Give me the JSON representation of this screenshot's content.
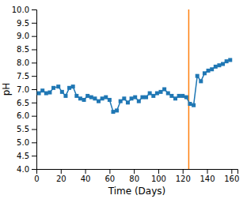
{
  "chart_data": {
    "type": "line",
    "xlabel": "Time (Days)",
    "ylabel": "pH",
    "x": [
      2,
      5,
      8,
      11,
      14,
      18,
      21,
      24,
      27,
      30,
      33,
      36,
      39,
      42,
      45,
      48,
      51,
      54,
      57,
      60,
      63,
      66,
      69,
      72,
      75,
      78,
      81,
      84,
      87,
      90,
      93,
      96,
      99,
      102,
      105,
      108,
      111,
      114,
      117,
      120,
      123,
      126,
      129,
      132,
      135,
      138,
      141,
      144,
      147,
      150,
      153,
      156,
      159
    ],
    "values": [
      6.85,
      6.95,
      6.85,
      6.88,
      7.05,
      7.1,
      6.9,
      6.75,
      7.05,
      7.1,
      6.75,
      6.65,
      6.6,
      6.75,
      6.7,
      6.65,
      6.55,
      6.65,
      6.7,
      6.6,
      6.15,
      6.2,
      6.55,
      6.65,
      6.5,
      6.65,
      6.7,
      6.55,
      6.7,
      6.7,
      6.85,
      6.75,
      6.85,
      6.9,
      7.0,
      6.85,
      6.75,
      6.65,
      6.75,
      6.75,
      6.7,
      6.45,
      6.4,
      7.5,
      7.3,
      7.6,
      7.7,
      7.75,
      7.85,
      7.9,
      7.95,
      8.05,
      8.1
    ],
    "vline_x": 125,
    "marker": "square",
    "xlim": [
      0,
      165
    ],
    "ylim": [
      4.0,
      10.0
    ],
    "xticks": [
      0,
      20,
      40,
      60,
      80,
      100,
      120,
      140,
      160
    ],
    "yticks": [
      {
        "value": 4,
        "label": "4.0"
      },
      4.5,
      {
        "value": 5,
        "label": "5.0"
      },
      5.5,
      {
        "value": 6,
        "label": "6.0"
      },
      6.5,
      {
        "value": 7,
        "label": "7.0"
      },
      7.5,
      {
        "value": 8,
        "label": "8.0"
      },
      8.5,
      {
        "value": 9,
        "label": "9.0"
      },
      9.5,
      {
        "value": 10,
        "label": "10.0"
      }
    ],
    "grid": false
  }
}
